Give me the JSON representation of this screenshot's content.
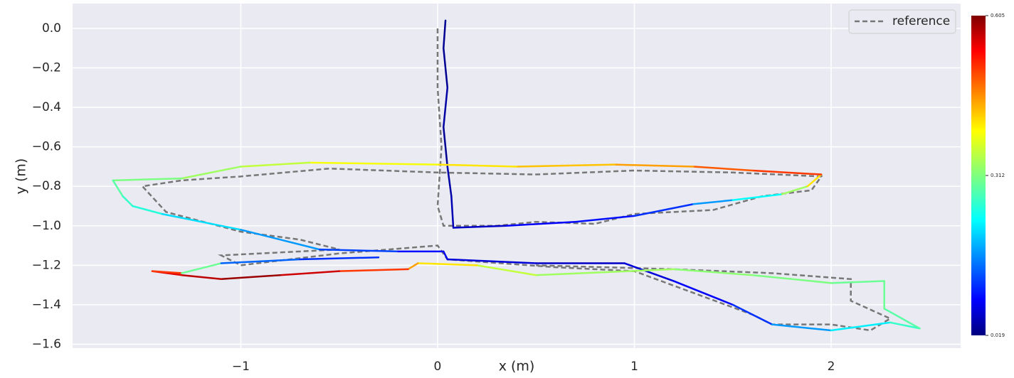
{
  "chart_data": {
    "type": "trajectory",
    "xlabel": "x (m)",
    "ylabel": "y (m)",
    "xlim": [
      -1.855,
      2.658
    ],
    "ylim": [
      -1.62,
      0.126
    ],
    "xticks": [
      {
        "value": -1,
        "label": "−1"
      },
      0,
      1,
      2
    ],
    "yticks": [
      {
        "value": 0,
        "label": "0.0"
      },
      {
        "value": -0.2,
        "label": "−0.2"
      },
      {
        "value": -0.4,
        "label": "−0.4"
      },
      {
        "value": -0.6,
        "label": "−0.6"
      },
      {
        "value": -0.8,
        "label": "−0.8"
      },
      {
        "value": -1.0,
        "label": "−1.0"
      },
      {
        "value": -1.2,
        "label": "−1.2"
      },
      {
        "value": -1.4,
        "label": "−1.4"
      },
      {
        "value": -1.6,
        "label": "−1.6"
      }
    ],
    "grid": true,
    "legend": "upper right",
    "colorbar": {
      "lim": [
        0.019,
        0.605
      ],
      "ticks": [
        0.019,
        0.312,
        0.605
      ],
      "colormap": "jet"
    },
    "series": [
      {
        "name": "reference",
        "color": "#777777",
        "dashed": true,
        "x": [
          0,
          0,
          0.02,
          0,
          0.03,
          0.3,
          0.5,
          0.8,
          1.0,
          1.4,
          1.65,
          1.9,
          1.95,
          1.5,
          1.0,
          0.5,
          0,
          -0.55,
          -1.0,
          -1.3,
          -1.5,
          -1.38,
          -1.0,
          -0.7,
          -0.5,
          -1.1,
          -1.0,
          -0.5,
          0,
          0.05,
          0.6,
          1.0,
          1.3,
          1.6,
          1.7,
          2.0,
          2.2,
          2.3,
          2.1,
          2.1,
          1.7,
          1.2,
          0.5
        ],
        "y": [
          0,
          -0.3,
          -0.6,
          -0.9,
          -1.0,
          -1.0,
          -0.98,
          -0.99,
          -0.94,
          -0.92,
          -0.85,
          -0.82,
          -0.75,
          -0.73,
          -0.72,
          -0.74,
          -0.73,
          -0.71,
          -0.75,
          -0.77,
          -0.8,
          -0.93,
          -1.03,
          -1.07,
          -1.12,
          -1.15,
          -1.2,
          -1.14,
          -1.1,
          -1.17,
          -1.21,
          -1.23,
          -1.34,
          -1.45,
          -1.5,
          -1.5,
          -1.53,
          -1.47,
          -1.38,
          -1.27,
          -1.24,
          -1.22,
          -1.2
        ]
      },
      {
        "x": [
          0.04,
          0.03,
          0.05,
          0.03,
          0.05,
          0.07,
          0.08,
          0.35,
          0.7,
          1.0,
          1.3,
          1.5,
          1.75,
          1.88,
          1.95,
          1.6,
          1.3,
          0.9,
          0.4,
          0,
          -0.65,
          -1.0,
          -1.3,
          -1.65,
          -1.6,
          -1.55,
          -1.4,
          -1.0,
          -0.6,
          -0.2,
          0.03,
          0.05,
          0.5,
          0.95,
          1.2,
          1.5,
          1.7,
          2.0,
          2.3,
          2.45,
          2.27,
          2.27,
          2.0,
          1.6,
          1.2,
          0.5,
          0.2,
          -0.1,
          -0.15,
          -0.5,
          -0.8,
          -1.1,
          -1.3,
          -1.45,
          -1.3,
          -1.1,
          -0.7,
          -0.3
        ],
        "y": [
          0.04,
          -0.1,
          -0.3,
          -0.5,
          -0.7,
          -0.85,
          -1.01,
          -1.0,
          -0.98,
          -0.95,
          -0.89,
          -0.87,
          -0.84,
          -0.8,
          -0.74,
          -0.72,
          -0.7,
          -0.69,
          -0.7,
          -0.69,
          -0.68,
          -0.7,
          -0.76,
          -0.77,
          -0.85,
          -0.9,
          -0.94,
          -1.02,
          -1.12,
          -1.13,
          -1.13,
          -1.17,
          -1.19,
          -1.19,
          -1.28,
          -1.4,
          -1.5,
          -1.53,
          -1.49,
          -1.52,
          -1.42,
          -1.28,
          -1.29,
          -1.25,
          -1.22,
          -1.25,
          -1.2,
          -1.19,
          -1.22,
          -1.23,
          -1.25,
          -1.27,
          -1.25,
          -1.23,
          -1.24,
          -1.19,
          -1.17,
          -1.16
        ],
        "error": [
          0.03,
          0.03,
          0.04,
          0.03,
          0.04,
          0.05,
          0.06,
          0.09,
          0.1,
          0.12,
          0.18,
          0.24,
          0.33,
          0.4,
          0.5,
          0.48,
          0.44,
          0.42,
          0.4,
          0.38,
          0.35,
          0.33,
          0.31,
          0.29,
          0.27,
          0.26,
          0.22,
          0.18,
          0.13,
          0.1,
          0.08,
          0.07,
          0.06,
          0.07,
          0.09,
          0.12,
          0.18,
          0.23,
          0.27,
          0.29,
          0.3,
          0.3,
          0.31,
          0.32,
          0.33,
          0.35,
          0.4,
          0.44,
          0.5,
          0.56,
          0.59,
          0.57,
          0.55,
          0.5,
          0.3,
          0.15,
          0.12,
          0.1
        ]
      }
    ]
  }
}
